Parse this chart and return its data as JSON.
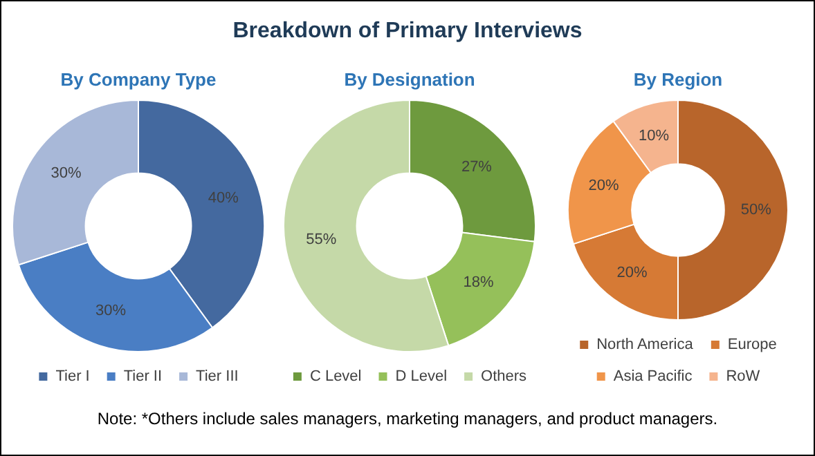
{
  "chart_data": [
    {
      "type": "other",
      "title": "Breakdown of Primary Interviews"
    },
    {
      "type": "donut",
      "title": "By Company Type",
      "categories": [
        "Tier I",
        "Tier II",
        "Tier III"
      ],
      "values": [
        40,
        30,
        30
      ],
      "value_labels": [
        "40%",
        "30%",
        "30%"
      ],
      "colors": [
        "#44699f",
        "#4a7ec4",
        "#a8b8d8"
      ],
      "legend": "bottom"
    },
    {
      "type": "donut",
      "title": "By Designation",
      "categories": [
        "C Level",
        "D Level",
        "Others"
      ],
      "values": [
        27,
        18,
        55
      ],
      "value_labels": [
        "27%",
        "18%",
        "55%"
      ],
      "colors": [
        "#6e9a3e",
        "#95c05a",
        "#c5d9a8"
      ],
      "legend": "bottom"
    },
    {
      "type": "donut",
      "title": "By Region",
      "categories": [
        "North America",
        "Europe",
        "Asia Pacific",
        "RoW"
      ],
      "values": [
        50,
        20,
        20,
        10
      ],
      "value_labels": [
        "50%",
        "20%",
        "20%",
        "10%"
      ],
      "colors": [
        "#b8652b",
        "#d67a35",
        "#f0954a",
        "#f5b48e"
      ],
      "legend": "bottom"
    },
    {
      "type": "other",
      "annotations": [
        "Note: *Others include sales managers, marketing managers, and product managers."
      ]
    }
  ]
}
